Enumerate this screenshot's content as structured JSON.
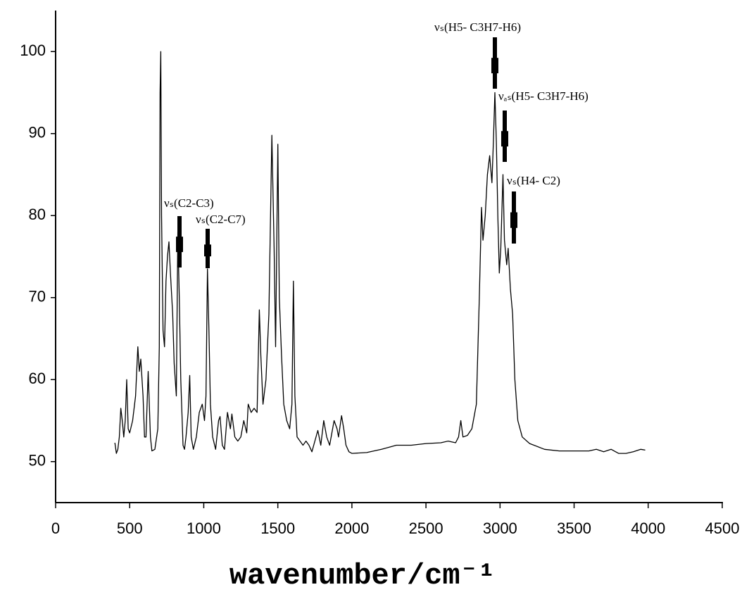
{
  "chart_data": {
    "type": "line",
    "x_label": "wavenumber/cm⁻¹",
    "xlim": [
      0,
      4500
    ],
    "xticks": [
      0,
      500,
      1000,
      1500,
      2000,
      2500,
      3000,
      3500,
      4000,
      4500
    ],
    "ylim": [
      45,
      105
    ],
    "yticks": [
      50,
      60,
      70,
      80,
      90,
      100
    ],
    "annotations": [
      {
        "text": "νₛ(C2-C3)"
      },
      {
        "text": "νₛ(C2-C7)"
      },
      {
        "text": "νₛ(H5- C3H7-H6)"
      },
      {
        "text": "νₐₛ(H5- C3H7-H6)"
      },
      {
        "text": "νₛ(H4- C2)"
      }
    ],
    "series": [
      {
        "color": "#000000",
        "x": [
          400,
          410,
          420,
          430,
          440,
          450,
          460,
          470,
          480,
          490,
          500,
          520,
          540,
          555,
          565,
          575,
          590,
          600,
          610,
          625,
          640,
          650,
          670,
          690,
          700,
          705,
          710,
          715,
          725,
          735,
          745,
          755,
          765,
          775,
          790,
          800,
          815,
          825,
          835,
          845,
          860,
          870,
          880,
          895,
          905,
          915,
          930,
          950,
          970,
          990,
          1005,
          1015,
          1025,
          1035,
          1045,
          1060,
          1080,
          1100,
          1110,
          1125,
          1140,
          1160,
          1180,
          1190,
          1210,
          1230,
          1250,
          1270,
          1290,
          1300,
          1320,
          1340,
          1360,
          1375,
          1385,
          1400,
          1420,
          1440,
          1460,
          1475,
          1485,
          1500,
          1510,
          1525,
          1540,
          1560,
          1580,
          1595,
          1605,
          1615,
          1630,
          1650,
          1670,
          1690,
          1710,
          1730,
          1750,
          1770,
          1790,
          1810,
          1830,
          1850,
          1870,
          1880,
          1900,
          1910,
          1930,
          1945,
          1960,
          1980,
          2000,
          2100,
          2200,
          2300,
          2400,
          2500,
          2600,
          2650,
          2700,
          2720,
          2735,
          2750,
          2780,
          2810,
          2840,
          2860,
          2875,
          2885,
          2900,
          2915,
          2930,
          2945,
          2955,
          2965,
          2975,
          2985,
          2995,
          3005,
          3020,
          3030,
          3045,
          3055,
          3070,
          3085,
          3100,
          3120,
          3150,
          3200,
          3300,
          3400,
          3500,
          3600,
          3650,
          3700,
          3750,
          3800,
          3850,
          3900,
          3950,
          3980
        ],
        "values": [
          52.3,
          51,
          51.5,
          53,
          56.5,
          55,
          53,
          55,
          60,
          54,
          53.5,
          55,
          58,
          64,
          61,
          62.5,
          58,
          53,
          53,
          61,
          53,
          51.3,
          51.5,
          54,
          64,
          95,
          100,
          80,
          66,
          64,
          72,
          75,
          76.8,
          73,
          68,
          62,
          58,
          78,
          70,
          60,
          52,
          51.5,
          53,
          56,
          60.5,
          53,
          51.5,
          53,
          56,
          57,
          55,
          58,
          73.5,
          66,
          57,
          53,
          51.5,
          55,
          55.5,
          52,
          51.5,
          56,
          54,
          55.8,
          53,
          52.5,
          53,
          55,
          53.5,
          57,
          56,
          56.5,
          56,
          68.5,
          63,
          57,
          60,
          68,
          89.8,
          76,
          64,
          88.7,
          70,
          63,
          57,
          55,
          54,
          57,
          72,
          58,
          53,
          52.5,
          52,
          52.5,
          52,
          51.2,
          52.5,
          53.8,
          52,
          55,
          53,
          52,
          54,
          55,
          54,
          53,
          55.6,
          54,
          52,
          51.2,
          51,
          51.1,
          51.5,
          52,
          52,
          52.2,
          52.3,
          52.5,
          52.3,
          53,
          55,
          53,
          53.2,
          54,
          57,
          70,
          81,
          77,
          80,
          85,
          87.3,
          84,
          89,
          95,
          89,
          80,
          73,
          76,
          85,
          77,
          74,
          76,
          71,
          68,
          60,
          55,
          53,
          52.2,
          51.5,
          51.3,
          51.3,
          51.3,
          51.5,
          51.2,
          51.5,
          51,
          51,
          51.2,
          51.5,
          51.4
        ]
      }
    ]
  }
}
